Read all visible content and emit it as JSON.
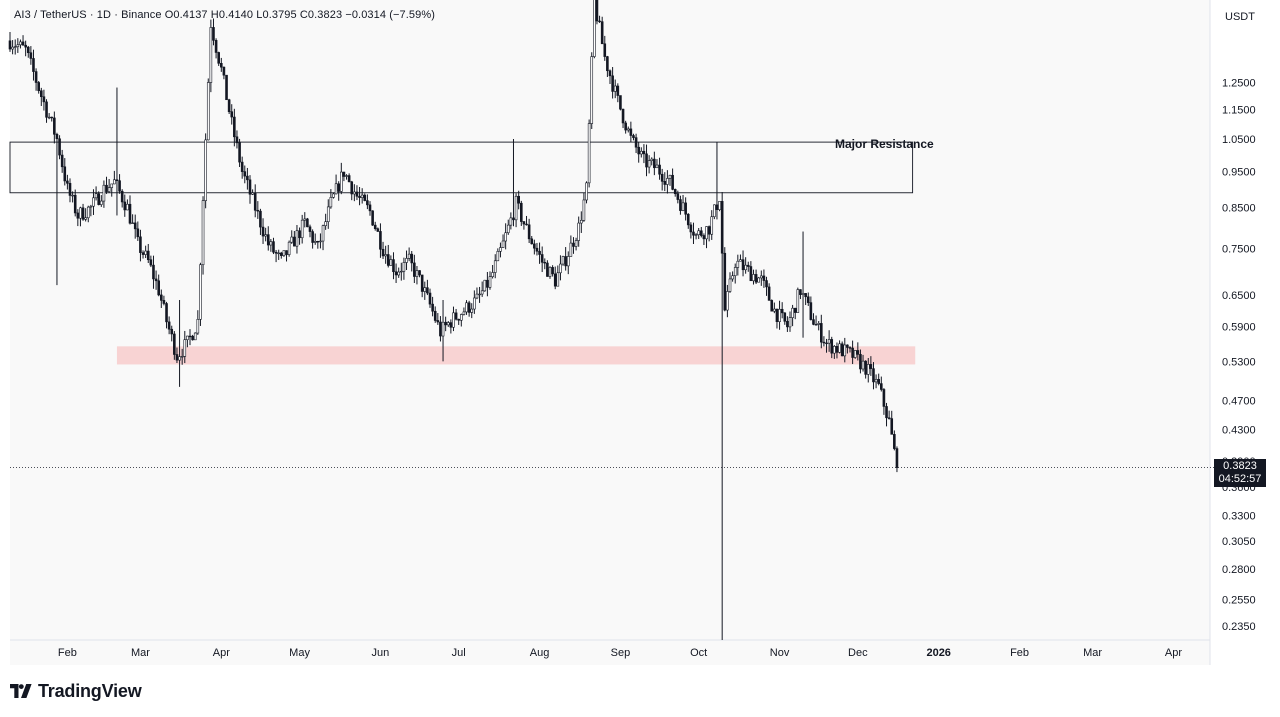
{
  "header": {
    "symbol_line": "AI3 / TetherUS · 1D · Binance  O0.4137  H0.4140  L0.3795  C0.3823  −0.0314 (−7.59%)"
  },
  "axis": {
    "unit": "USDT"
  },
  "price_tag": {
    "price": "0.3823",
    "countdown": "04:52:57"
  },
  "annotations": {
    "major_resistance": "Major Resistance"
  },
  "brand": {
    "name": "TradingView",
    "logo_icon": "tradingview-logo-icon"
  },
  "colors": {
    "candle": "#131722",
    "support_zone": "#f7c9c9",
    "background": "#f9f9f9"
  },
  "chart_data": {
    "type": "candlestick",
    "title": "",
    "xlabel": "",
    "ylabel": "",
    "y_scale": "log",
    "ylim": [
      0.225,
      1.6
    ],
    "x_range": [
      "2025-01-10",
      "2026-04-15"
    ],
    "grid": false,
    "y_ticks": [
      "1.2500",
      "1.1500",
      "1.0500",
      "0.9500",
      "0.8500",
      "0.7500",
      "0.6500",
      "0.5900",
      "0.5300",
      "0.4700",
      "0.4300",
      "0.3900",
      "0.3600",
      "0.3300",
      "0.3050",
      "0.2800",
      "0.2550",
      "0.2350"
    ],
    "x_ticks": [
      {
        "label": "Feb",
        "date": "2025-02-01",
        "bold": false
      },
      {
        "label": "Mar",
        "date": "2025-03-01",
        "bold": false
      },
      {
        "label": "Apr",
        "date": "2025-04-01",
        "bold": false
      },
      {
        "label": "May",
        "date": "2025-05-01",
        "bold": false
      },
      {
        "label": "Jun",
        "date": "2025-06-01",
        "bold": false
      },
      {
        "label": "Jul",
        "date": "2025-07-01",
        "bold": false
      },
      {
        "label": "Aug",
        "date": "2025-08-01",
        "bold": false
      },
      {
        "label": "Sep",
        "date": "2025-09-01",
        "bold": false
      },
      {
        "label": "Oct",
        "date": "2025-10-01",
        "bold": false
      },
      {
        "label": "Nov",
        "date": "2025-11-01",
        "bold": false
      },
      {
        "label": "Dec",
        "date": "2025-12-01",
        "bold": false
      },
      {
        "label": "2026",
        "date": "2026-01-01",
        "bold": true
      },
      {
        "label": "Feb",
        "date": "2026-02-01",
        "bold": false
      },
      {
        "label": "Mar",
        "date": "2026-03-01",
        "bold": false
      },
      {
        "label": "Apr",
        "date": "2026-04-01",
        "bold": false
      }
    ],
    "close_path": [
      [
        "2025-01-10",
        1.42
      ],
      [
        "2025-01-16",
        1.38
      ],
      [
        "2025-01-22",
        1.2
      ],
      [
        "2025-01-28",
        1.05
      ],
      [
        "2025-02-01",
        0.9
      ],
      [
        "2025-02-05",
        0.83
      ],
      [
        "2025-02-10",
        0.85
      ],
      [
        "2025-02-15",
        0.9
      ],
      [
        "2025-02-19",
        0.92
      ],
      [
        "2025-02-24",
        0.85
      ],
      [
        "2025-02-28",
        0.76
      ],
      [
        "2025-03-04",
        0.72
      ],
      [
        "2025-03-08",
        0.66
      ],
      [
        "2025-03-11",
        0.6
      ],
      [
        "2025-03-15",
        0.54
      ],
      [
        "2025-03-19",
        0.56
      ],
      [
        "2025-03-23",
        0.6
      ],
      [
        "2025-03-25",
        0.88
      ],
      [
        "2025-03-28",
        1.5
      ],
      [
        "2025-04-01",
        1.3
      ],
      [
        "2025-04-05",
        1.1
      ],
      [
        "2025-04-09",
        0.95
      ],
      [
        "2025-04-14",
        0.85
      ],
      [
        "2025-04-19",
        0.76
      ],
      [
        "2025-04-24",
        0.72
      ],
      [
        "2025-04-29",
        0.77
      ],
      [
        "2025-05-03",
        0.81
      ],
      [
        "2025-05-08",
        0.75
      ],
      [
        "2025-05-13",
        0.86
      ],
      [
        "2025-05-18",
        0.95
      ],
      [
        "2025-05-23",
        0.88
      ],
      [
        "2025-05-28",
        0.84
      ],
      [
        "2025-06-02",
        0.75
      ],
      [
        "2025-06-07",
        0.7
      ],
      [
        "2025-06-12",
        0.72
      ],
      [
        "2025-06-16",
        0.68
      ],
      [
        "2025-06-20",
        0.63
      ],
      [
        "2025-06-24",
        0.58
      ],
      [
        "2025-06-28",
        0.6
      ],
      [
        "2025-07-03",
        0.62
      ],
      [
        "2025-07-08",
        0.64
      ],
      [
        "2025-07-13",
        0.68
      ],
      [
        "2025-07-18",
        0.76
      ],
      [
        "2025-07-23",
        0.86
      ],
      [
        "2025-07-28",
        0.78
      ],
      [
        "2025-08-02",
        0.72
      ],
      [
        "2025-08-07",
        0.68
      ],
      [
        "2025-08-12",
        0.74
      ],
      [
        "2025-08-16",
        0.8
      ],
      [
        "2025-08-19",
        0.9
      ],
      [
        "2025-08-22",
        1.6
      ],
      [
        "2025-08-26",
        1.35
      ],
      [
        "2025-08-31",
        1.18
      ],
      [
        "2025-09-05",
        1.05
      ],
      [
        "2025-09-10",
        0.98
      ],
      [
        "2025-09-15",
        0.96
      ],
      [
        "2025-09-20",
        0.92
      ],
      [
        "2025-09-25",
        0.85
      ],
      [
        "2025-09-30",
        0.78
      ],
      [
        "2025-10-05",
        0.8
      ],
      [
        "2025-10-09",
        0.88
      ],
      [
        "2025-10-11",
        0.62
      ],
      [
        "2025-10-15",
        0.72
      ],
      [
        "2025-10-20",
        0.7
      ],
      [
        "2025-10-25",
        0.68
      ],
      [
        "2025-10-30",
        0.62
      ],
      [
        "2025-11-04",
        0.59
      ],
      [
        "2025-11-09",
        0.66
      ],
      [
        "2025-11-14",
        0.6
      ],
      [
        "2025-11-19",
        0.56
      ],
      [
        "2025-11-24",
        0.55
      ],
      [
        "2025-11-29",
        0.54
      ],
      [
        "2025-12-04",
        0.52
      ],
      [
        "2025-12-09",
        0.49
      ],
      [
        "2025-12-13",
        0.44
      ],
      [
        "2025-12-16",
        0.3823
      ]
    ],
    "current_price": 0.3823,
    "support_zone": {
      "y_range": [
        0.525,
        0.555
      ],
      "x_range": [
        "2025-02-20",
        "2025-12-23"
      ]
    },
    "resistance_zone": {
      "label": "Major Resistance",
      "y_range": [
        0.89,
        1.04
      ],
      "x_range": [
        "2025-01-10",
        "2025-12-22"
      ]
    },
    "event_wick": {
      "date": "2025-10-10",
      "high": 0.88,
      "low": 0.225
    },
    "notable_wicks": [
      {
        "date": "2025-01-28",
        "high": 1.02,
        "low": 0.67
      },
      {
        "date": "2025-02-20",
        "high": 1.23,
        "low": 0.83
      },
      {
        "date": "2025-03-16",
        "high": 0.64,
        "low": 0.49
      },
      {
        "date": "2025-06-25",
        "high": 0.64,
        "low": 0.53
      },
      {
        "date": "2025-07-22",
        "high": 1.05,
        "low": 0.82
      },
      {
        "date": "2025-10-08",
        "high": 1.04,
        "low": 0.82
      },
      {
        "date": "2025-11-10",
        "high": 0.79,
        "low": 0.57
      }
    ]
  }
}
